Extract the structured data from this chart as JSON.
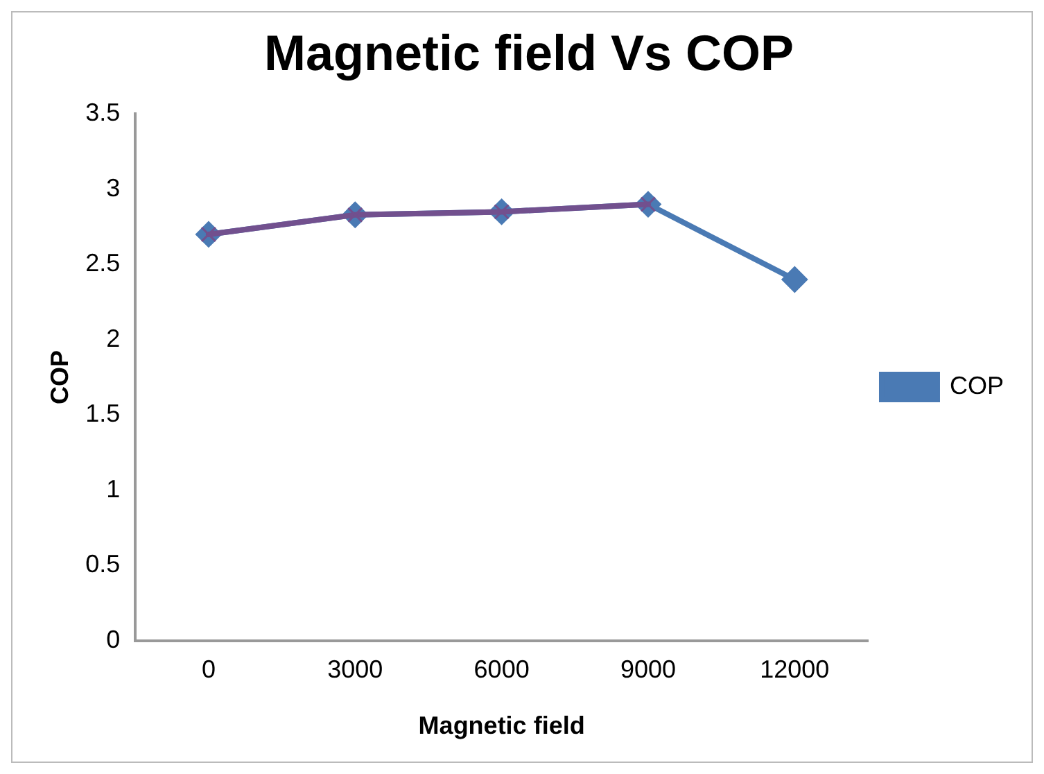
{
  "chart_data": {
    "type": "line",
    "title": "Magnetic field Vs COP",
    "xlabel": "Magnetic field",
    "ylabel": "COP",
    "categories": [
      "0",
      "3000",
      "6000",
      "9000",
      "12000"
    ],
    "series": [
      {
        "name": "COP",
        "color": "#4a7ab4",
        "values": [
          2.7,
          2.83,
          2.85,
          2.9,
          2.4
        ],
        "marker": "diamond"
      },
      {
        "color": "#72508e",
        "values": [
          2.7,
          2.83,
          2.85,
          2.9,
          null
        ],
        "marker": "cross"
      }
    ],
    "ylim": [
      0,
      3.5
    ],
    "yticks": [
      0,
      0.5,
      1,
      1.5,
      2,
      2.5,
      3,
      3.5
    ],
    "grid": false,
    "legend": "right",
    "line_style": "solid"
  }
}
